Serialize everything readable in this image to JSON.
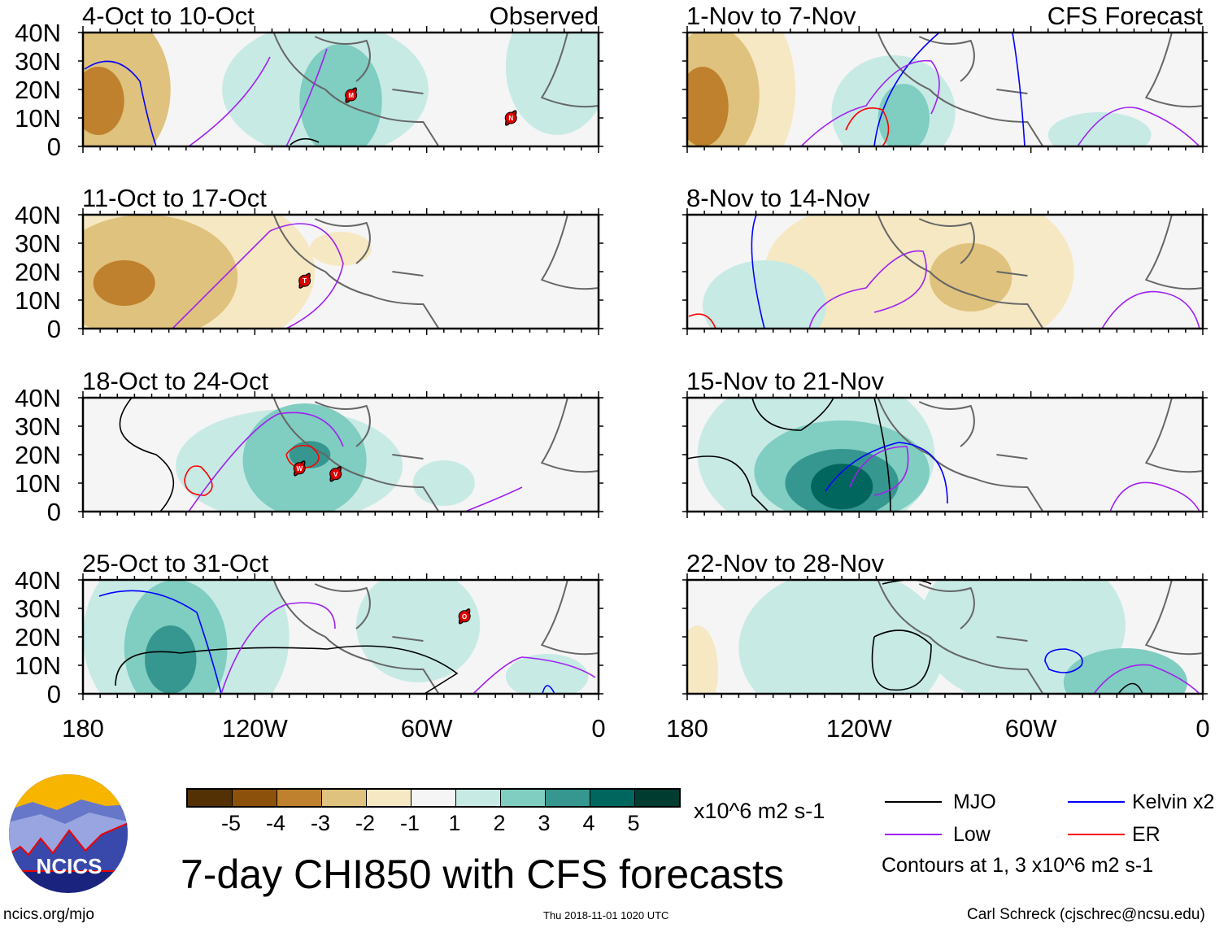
{
  "panels": {
    "left": [
      {
        "title": "4-Oct to 10-Oct",
        "tag": "Observed",
        "storms": [
          "M",
          "N"
        ]
      },
      {
        "title": "11-Oct to 17-Oct",
        "storms": [
          "T"
        ]
      },
      {
        "title": "18-Oct to 24-Oct",
        "storms": [
          "W",
          "V"
        ]
      },
      {
        "title": "25-Oct to 31-Oct",
        "storms": [
          "O"
        ]
      }
    ],
    "right": [
      {
        "title": "1-Nov to 7-Nov",
        "tag": "CFS Forecast"
      },
      {
        "title": "8-Nov to 14-Nov"
      },
      {
        "title": "15-Nov to 21-Nov"
      },
      {
        "title": "22-Nov to 28-Nov"
      }
    ]
  },
  "y_ticks": [
    "40N",
    "30N",
    "20N",
    "10N",
    "0"
  ],
  "x_ticks": [
    "180",
    "120W",
    "60W",
    "0"
  ],
  "colorbar": {
    "labels": [
      "-5",
      "-4",
      "-3",
      "-2",
      "-1",
      "1",
      "2",
      "3",
      "4",
      "5"
    ],
    "colors": [
      "#543005",
      "#8c510a",
      "#bf812d",
      "#dfc27d",
      "#f6e8c3",
      "#f5f5f5",
      "#c7eae5",
      "#80cdc1",
      "#35978f",
      "#01665e",
      "#003c30"
    ],
    "units": "x10^6 m2 s-1"
  },
  "legend": {
    "items": [
      {
        "label": "MJO",
        "color": "#000000"
      },
      {
        "label": "Kelvin x2",
        "color": "#0000ff"
      },
      {
        "label": "Low",
        "color": "#a020f0"
      },
      {
        "label": "ER",
        "color": "#ff0000"
      }
    ],
    "note": "Contours at 1, 3 x10^6 m2 s-1"
  },
  "title": "7-day CHI850 with CFS forecasts",
  "logo_text": "NCICS",
  "footer": {
    "url": "ncics.org/mjo",
    "timestamp": "Thu 2018-11-01 1020 UTC",
    "author": "Carl Schreck (cjschrec@ncsu.edu)"
  }
}
